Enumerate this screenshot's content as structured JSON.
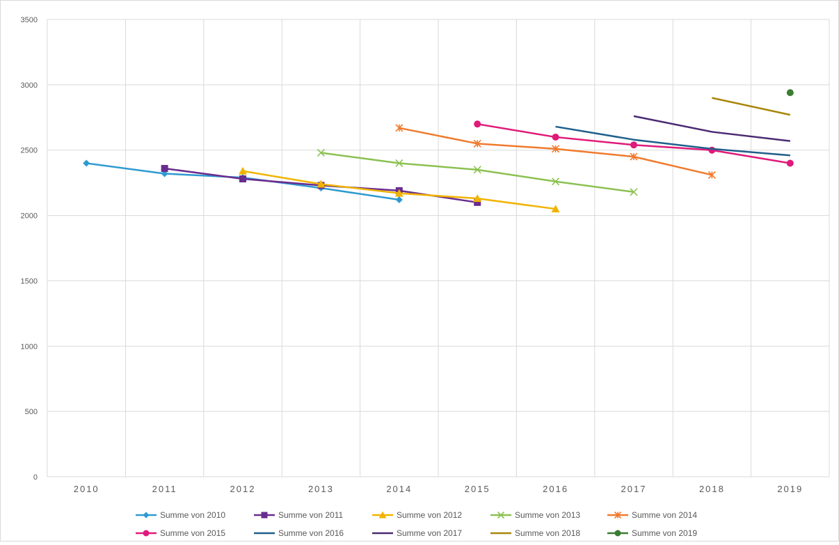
{
  "chart_data": {
    "type": "line",
    "title": "",
    "xlabel": "",
    "ylabel": "",
    "categories": [
      "2010",
      "2011",
      "2012",
      "2013",
      "2014",
      "2015",
      "2016",
      "2017",
      "2018",
      "2019"
    ],
    "ylim": [
      0,
      3500
    ],
    "yticks": [
      0,
      500,
      1000,
      1500,
      2000,
      2500,
      3000,
      3500
    ],
    "grid": true,
    "legend_position": "bottom",
    "series": [
      {
        "name": "Summe von 2010",
        "color": "#2E9AD0",
        "marker": "diamond",
        "values": [
          2400,
          2320,
          2290,
          2210,
          2120,
          null,
          null,
          null,
          null,
          null
        ]
      },
      {
        "name": "Summe von 2011",
        "color": "#6A2C8E",
        "marker": "square",
        "values": [
          null,
          2360,
          2280,
          2230,
          2190,
          2100,
          null,
          null,
          null,
          null
        ]
      },
      {
        "name": "Summe von 2012",
        "color": "#F0B400",
        "marker": "triangle",
        "values": [
          null,
          null,
          2340,
          2240,
          2170,
          2130,
          2050,
          null,
          null,
          null
        ]
      },
      {
        "name": "Summe von 2013",
        "color": "#8CC152",
        "marker": "x",
        "values": [
          null,
          null,
          null,
          2480,
          2400,
          2350,
          2260,
          2180,
          null,
          null
        ]
      },
      {
        "name": "Summe von 2014",
        "color": "#F07A2C",
        "marker": "star",
        "values": [
          null,
          null,
          null,
          null,
          2670,
          2550,
          2510,
          2450,
          2310,
          null
        ]
      },
      {
        "name": "Summe von 2015",
        "color": "#E0197A",
        "marker": "circle",
        "values": [
          null,
          null,
          null,
          null,
          null,
          2700,
          2600,
          2540,
          2500,
          2400
        ]
      },
      {
        "name": "Summe von 2016",
        "color": "#1F5F8B",
        "marker": "none",
        "values": [
          null,
          null,
          null,
          null,
          null,
          null,
          2680,
          2580,
          2510,
          2460
        ]
      },
      {
        "name": "Summe von 2017",
        "color": "#4B2A72",
        "marker": "none",
        "values": [
          null,
          null,
          null,
          null,
          null,
          null,
          null,
          2760,
          2640,
          2570
        ]
      },
      {
        "name": "Summe von 2018",
        "color": "#A8860A",
        "marker": "none",
        "values": [
          null,
          null,
          null,
          null,
          null,
          null,
          null,
          null,
          2900,
          2770
        ]
      },
      {
        "name": "Summe von 2019",
        "color": "#3A7D32",
        "marker": "circle",
        "values": [
          null,
          null,
          null,
          null,
          null,
          null,
          null,
          null,
          null,
          2940
        ]
      }
    ]
  }
}
